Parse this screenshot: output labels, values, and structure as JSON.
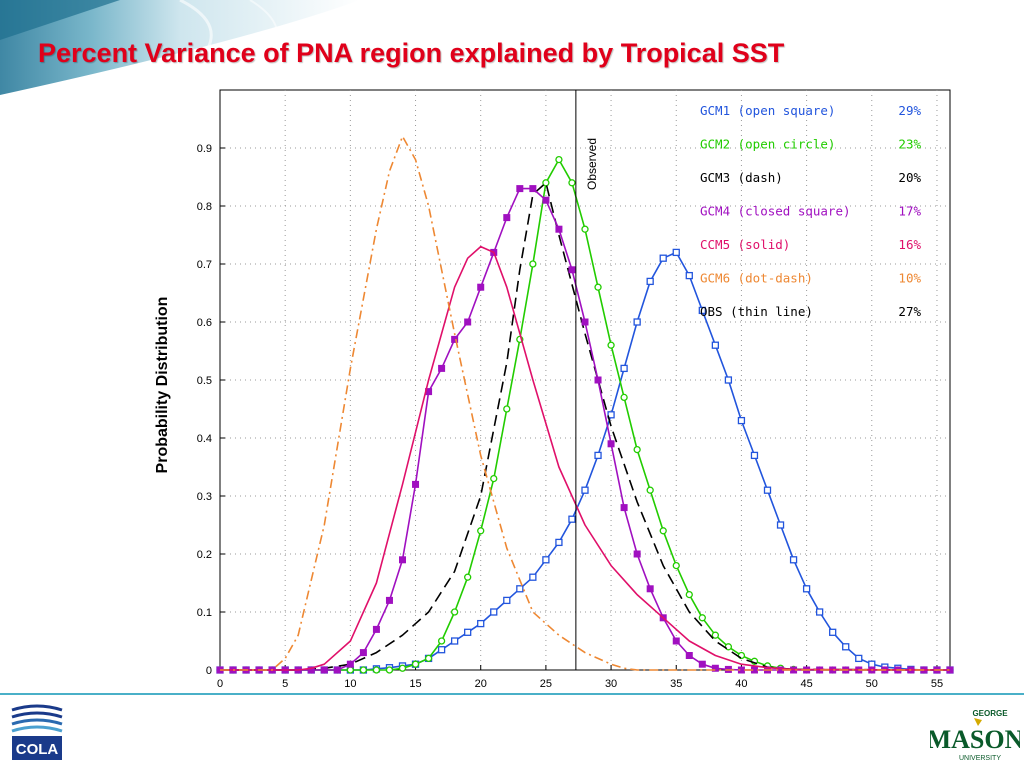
{
  "slide": {
    "title": "Percent Variance of PNA region explained by Tropical SST",
    "ylabel": "Probability Distribution",
    "cola_logo_text": "COLA",
    "gmu_logo_top": "GEORGE",
    "gmu_logo_main": "MASON",
    "gmu_logo_bottom": "UNIVERSITY"
  },
  "chart_data": {
    "type": "line",
    "title": "",
    "xlabel": "",
    "ylabel": "Probability Distribution",
    "xlim": [
      0,
      56
    ],
    "ylim": [
      0,
      1.0
    ],
    "xticks": [
      0,
      5,
      10,
      15,
      20,
      25,
      30,
      35,
      40,
      45,
      50,
      55
    ],
    "yticks": [
      0,
      0.1,
      0.2,
      0.3,
      0.4,
      0.5,
      0.6,
      0.7,
      0.8,
      0.9
    ],
    "grid": true,
    "legend_position": "top-right",
    "observed": {
      "x": 27.3,
      "label": "Observed"
    },
    "legend": [
      {
        "name": "GCM1  (open square)",
        "pct": "29%",
        "color": "#2255dd"
      },
      {
        "name": "GCM2  (open circle)",
        "pct": "23%",
        "color": "#22cc00"
      },
      {
        "name": "GCM3  (dash)",
        "pct": "20%",
        "color": "#000000"
      },
      {
        "name": "GCM4  (closed square)",
        "pct": "17%",
        "color": "#a010c0"
      },
      {
        "name": "CCM5  (solid)",
        "pct": "16%",
        "color": "#e0106a"
      },
      {
        "name": "GCM6  (dot-dash)",
        "pct": "10%",
        "color": "#ee8833"
      },
      {
        "name": "OBS   (thin line)",
        "pct": "27%",
        "color": "#000000"
      }
    ],
    "series": [
      {
        "name": "GCM1",
        "color": "#2255dd",
        "style": "solid",
        "marker": "open-square",
        "x": [
          0,
          1,
          2,
          3,
          4,
          5,
          6,
          7,
          8,
          9,
          10,
          11,
          12,
          13,
          14,
          15,
          16,
          17,
          18,
          19,
          20,
          21,
          22,
          23,
          24,
          25,
          26,
          27,
          28,
          29,
          30,
          31,
          32,
          33,
          34,
          35,
          36,
          37,
          38,
          39,
          40,
          41,
          42,
          43,
          44,
          45,
          46,
          47,
          48,
          49,
          50,
          51,
          52,
          53,
          54,
          55,
          56
        ],
        "y": [
          0,
          0,
          0,
          0,
          0,
          0,
          0,
          0,
          0,
          0,
          0,
          0,
          0.002,
          0.004,
          0.007,
          0.01,
          0.02,
          0.035,
          0.05,
          0.065,
          0.08,
          0.1,
          0.12,
          0.14,
          0.16,
          0.19,
          0.22,
          0.26,
          0.31,
          0.37,
          0.44,
          0.52,
          0.6,
          0.67,
          0.71,
          0.72,
          0.68,
          0.62,
          0.56,
          0.5,
          0.43,
          0.37,
          0.31,
          0.25,
          0.19,
          0.14,
          0.1,
          0.065,
          0.04,
          0.02,
          0.01,
          0.005,
          0.003,
          0.001,
          0,
          0,
          0
        ]
      },
      {
        "name": "GCM2",
        "color": "#22cc00",
        "style": "solid",
        "marker": "open-circle",
        "x": [
          0,
          1,
          2,
          3,
          4,
          5,
          6,
          7,
          8,
          9,
          10,
          11,
          12,
          13,
          14,
          15,
          16,
          17,
          18,
          19,
          20,
          21,
          22,
          23,
          24,
          25,
          26,
          27,
          28,
          29,
          30,
          31,
          32,
          33,
          34,
          35,
          36,
          37,
          38,
          39,
          40,
          41,
          42,
          43,
          44,
          45,
          46,
          47,
          48,
          49,
          50,
          51,
          52,
          53,
          54,
          55,
          56
        ],
        "y": [
          0,
          0,
          0,
          0,
          0,
          0,
          0,
          0,
          0,
          0,
          0,
          0,
          0,
          0,
          0.003,
          0.01,
          0.02,
          0.05,
          0.1,
          0.16,
          0.24,
          0.33,
          0.45,
          0.57,
          0.7,
          0.84,
          0.88,
          0.84,
          0.76,
          0.66,
          0.56,
          0.47,
          0.38,
          0.31,
          0.24,
          0.18,
          0.13,
          0.09,
          0.06,
          0.04,
          0.025,
          0.015,
          0.007,
          0.003,
          0.001,
          0,
          0,
          0,
          0,
          0,
          0,
          0,
          0,
          0,
          0,
          0,
          0
        ]
      },
      {
        "name": "GCM3",
        "color": "#000000",
        "style": "dash",
        "marker": "none",
        "x": [
          0,
          2,
          4,
          6,
          8,
          10,
          12,
          14,
          16,
          18,
          20,
          22,
          23,
          24,
          25,
          26,
          28,
          30,
          32,
          34,
          36,
          38,
          40,
          42,
          44,
          56
        ],
        "y": [
          0,
          0,
          0,
          0,
          0.003,
          0.01,
          0.03,
          0.06,
          0.1,
          0.17,
          0.3,
          0.53,
          0.69,
          0.82,
          0.84,
          0.75,
          0.58,
          0.42,
          0.29,
          0.18,
          0.1,
          0.05,
          0.02,
          0.005,
          0.001,
          0
        ]
      },
      {
        "name": "GCM4",
        "color": "#a010c0",
        "style": "solid",
        "marker": "closed-square",
        "x": [
          0,
          1,
          2,
          3,
          4,
          5,
          6,
          7,
          8,
          9,
          10,
          11,
          12,
          13,
          14,
          15,
          16,
          17,
          18,
          19,
          20,
          21,
          22,
          23,
          24,
          25,
          26,
          27,
          28,
          29,
          30,
          31,
          32,
          33,
          34,
          35,
          36,
          37,
          38,
          39,
          40,
          41,
          42,
          43,
          44,
          45,
          46,
          47,
          48,
          49,
          50,
          51,
          52,
          53,
          54,
          55,
          56
        ],
        "y": [
          0,
          0,
          0,
          0,
          0,
          0,
          0,
          0,
          0,
          0,
          0.01,
          0.03,
          0.07,
          0.12,
          0.19,
          0.32,
          0.48,
          0.52,
          0.57,
          0.6,
          0.66,
          0.72,
          0.78,
          0.83,
          0.83,
          0.81,
          0.76,
          0.69,
          0.6,
          0.5,
          0.39,
          0.28,
          0.2,
          0.14,
          0.09,
          0.05,
          0.025,
          0.01,
          0.003,
          0.001,
          0,
          0,
          0,
          0,
          0,
          0,
          0,
          0,
          0,
          0,
          0,
          0,
          0,
          0,
          0,
          0,
          0
        ]
      },
      {
        "name": "CCM5",
        "color": "#e0106a",
        "style": "solid",
        "marker": "none",
        "x": [
          0,
          2,
          4,
          6,
          7,
          8,
          10,
          12,
          14,
          16,
          18,
          19,
          20,
          21,
          22,
          24,
          26,
          28,
          30,
          32,
          34,
          36,
          38,
          40,
          42,
          44,
          56
        ],
        "y": [
          0,
          0,
          0,
          0,
          0.003,
          0.01,
          0.05,
          0.15,
          0.32,
          0.5,
          0.66,
          0.71,
          0.73,
          0.72,
          0.66,
          0.5,
          0.35,
          0.25,
          0.18,
          0.13,
          0.09,
          0.05,
          0.025,
          0.01,
          0.004,
          0.001,
          0
        ]
      },
      {
        "name": "GCM6",
        "color": "#ee8833",
        "style": "dot-dash",
        "marker": "none",
        "x": [
          0,
          2,
          4,
          5,
          6,
          8,
          10,
          12,
          13,
          14,
          15,
          16,
          18,
          20,
          22,
          24,
          26,
          28,
          30,
          31,
          32,
          56
        ],
        "y": [
          0,
          0,
          0,
          0.02,
          0.06,
          0.25,
          0.52,
          0.76,
          0.86,
          0.92,
          0.88,
          0.8,
          0.58,
          0.37,
          0.21,
          0.1,
          0.06,
          0.03,
          0.01,
          0.003,
          0,
          0
        ]
      }
    ]
  }
}
